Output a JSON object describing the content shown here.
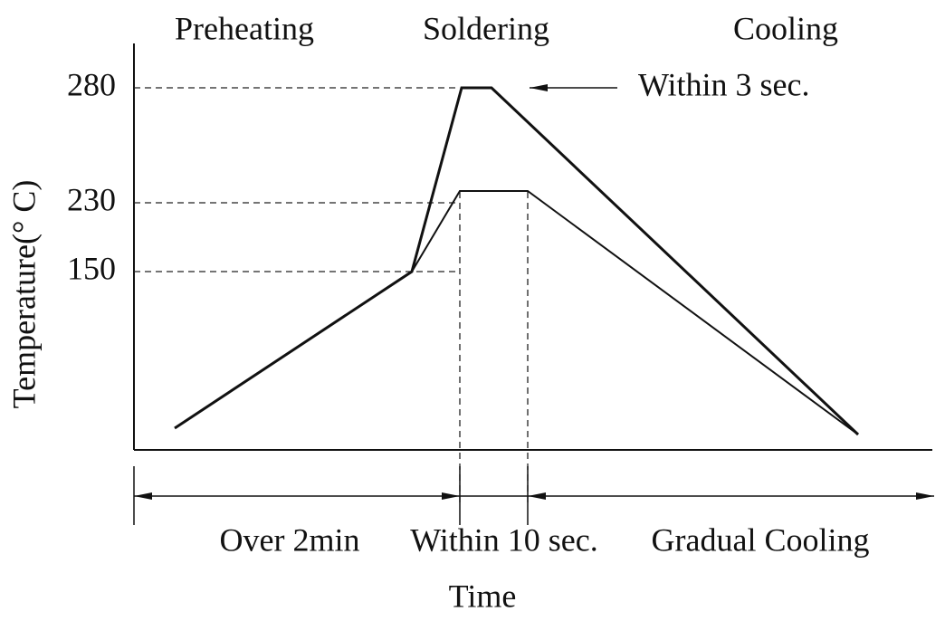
{
  "phases": [
    "Preheating",
    "Soldering",
    "Cooling"
  ],
  "y_axis": {
    "label": "Temperature(° C)",
    "levels": [
      280,
      230,
      150
    ]
  },
  "annotation": "Within 3 sec.",
  "spans": [
    "Over 2min",
    "Within 10 sec.",
    "Gradual Cooling"
  ],
  "x_axis": {
    "label": "Time"
  }
}
